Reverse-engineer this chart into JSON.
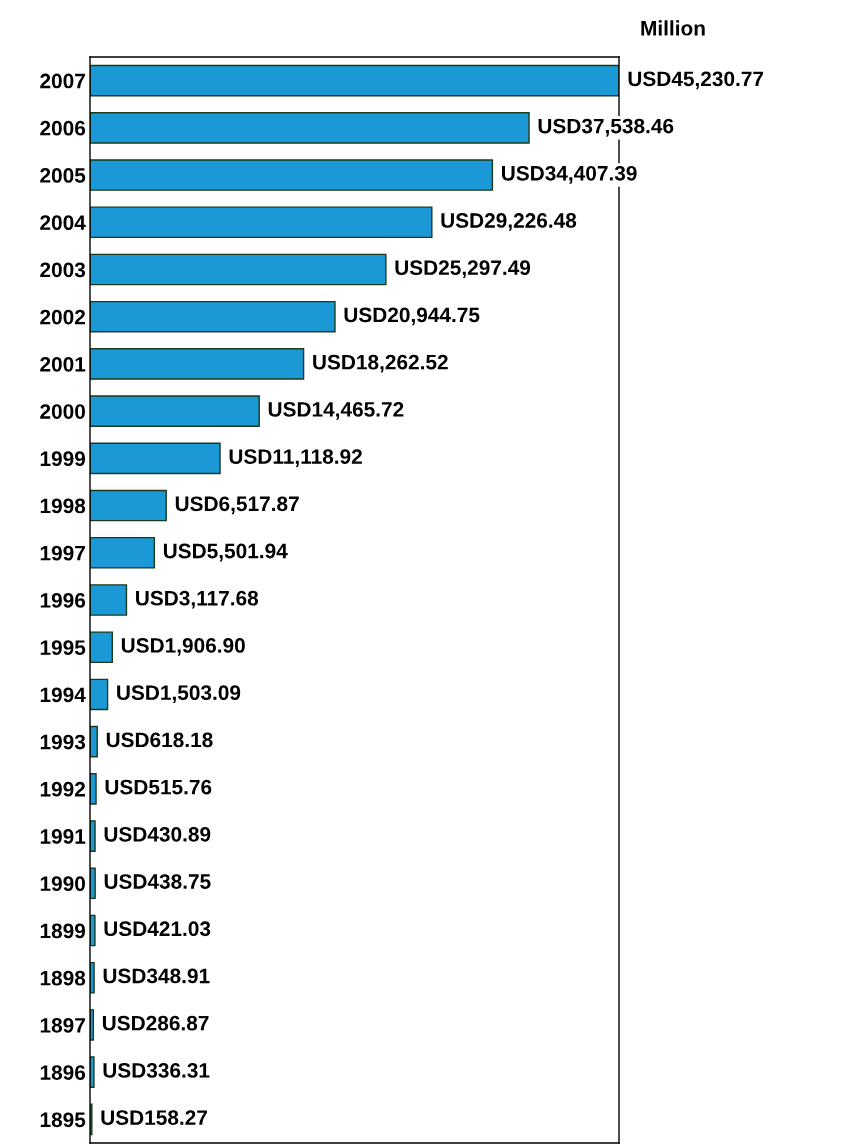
{
  "chart_data": {
    "type": "bar",
    "orientation": "horizontal",
    "categories": [
      "2007",
      "2006",
      "2005",
      "2004",
      "2003",
      "2002",
      "2001",
      "2000",
      "1999",
      "1998",
      "1997",
      "1996",
      "1995",
      "1994",
      "1993",
      "1992",
      "1991",
      "1990",
      "1899",
      "1898",
      "1897",
      "1896",
      "1895"
    ],
    "values": [
      45230.77,
      37538.46,
      34407.39,
      29226.48,
      25297.49,
      20944.75,
      18262.52,
      14465.72,
      11118.92,
      6517.87,
      5501.94,
      3117.68,
      1906.9,
      1503.09,
      618.18,
      515.76,
      430.89,
      438.75,
      421.03,
      348.91,
      286.87,
      336.31,
      158.27
    ],
    "value_labels": [
      "USD45,230.77",
      "USD37,538.46",
      "USD34,407.39",
      "USD29,226.48",
      "USD25,297.49",
      "USD20,944.75",
      "USD18,262.52",
      "USD14,465.72",
      "USD11,118.92",
      "USD6,517.87",
      "USD5,501.94",
      "USD3,117.68",
      "USD1,906.90",
      "USD1,503.09",
      "USD618.18",
      "USD515.76",
      "USD430.89",
      "USD438.75",
      "USD421.03",
      "USD348.91",
      "USD286.87",
      "USD336.31",
      "USD158.27"
    ],
    "color": "#1a99d6",
    "annotations": [
      "Million"
    ],
    "grid": false,
    "legend": false
  }
}
